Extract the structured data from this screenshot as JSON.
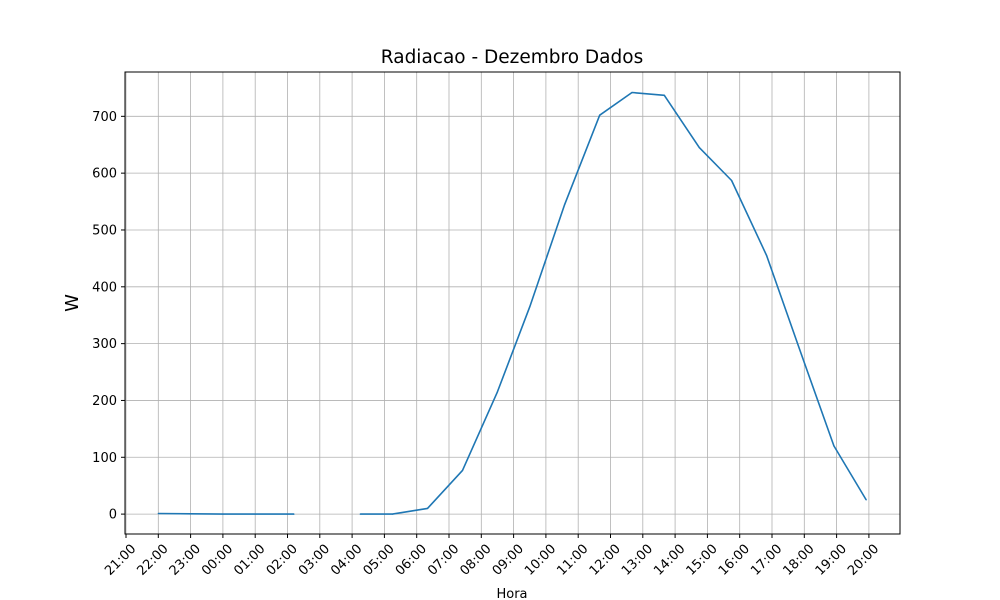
{
  "chart_data": {
    "type": "line",
    "title": "Radiacao - Dezembro Dados",
    "xlabel": "Hora",
    "ylabel": "W",
    "grid": true,
    "x_tick_labels": [
      "21:00",
      "22:00",
      "23:00",
      "00:00",
      "01:00",
      "02:00",
      "03:00",
      "04:00",
      "05:00",
      "06:00",
      "07:00",
      "08:00",
      "09:00",
      "10:00",
      "11:00",
      "12:00",
      "13:00",
      "14:00",
      "15:00",
      "16:00",
      "17:00",
      "18:00",
      "19:00",
      "20:00"
    ],
    "y_ticks": [
      0,
      100,
      200,
      300,
      400,
      500,
      600,
      700
    ],
    "xlim": [
      "20:55",
      "21:00 (+1 day)"
    ],
    "ylim": [
      -35,
      778
    ],
    "series": [
      {
        "color": "#1f77b4",
        "segments": [
          [
            {
              "x": "22:00",
              "y": 1
            },
            {
              "x": "23:00",
              "y": 0.5
            },
            {
              "x": "00:00",
              "y": 0
            },
            {
              "x": "01:00",
              "y": 0
            },
            {
              "x": "02:00",
              "y": 0
            },
            {
              "x": "02:12",
              "y": 0
            }
          ],
          [
            {
              "x": "04:15",
              "y": 0
            },
            {
              "x": "05:15",
              "y": 0
            },
            {
              "x": "06:20",
              "y": 10
            },
            {
              "x": "07:25",
              "y": 77
            },
            {
              "x": "08:30",
              "y": 215
            },
            {
              "x": "09:30",
              "y": 365
            },
            {
              "x": "10:35",
              "y": 545
            },
            {
              "x": "11:40",
              "y": 702
            },
            {
              "x": "12:40",
              "y": 742
            },
            {
              "x": "13:40",
              "y": 737
            },
            {
              "x": "14:45",
              "y": 645
            },
            {
              "x": "15:45",
              "y": 587
            },
            {
              "x": "16:50",
              "y": 455
            },
            {
              "x": "17:55",
              "y": 280
            },
            {
              "x": "18:55",
              "y": 120
            },
            {
              "x": "19:55",
              "y": 25
            }
          ]
        ]
      }
    ]
  }
}
